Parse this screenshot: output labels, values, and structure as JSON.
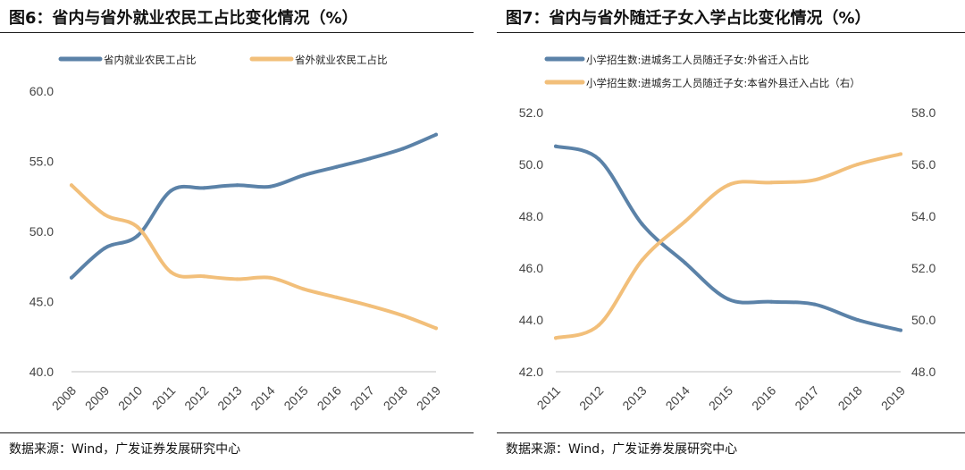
{
  "chart_data": [
    {
      "type": "line",
      "title": "图6：省内与省外就业农民工占比变化情况（%）",
      "source": "数据来源：Wind，广发证券发展研究中心",
      "x": [
        "2008",
        "2009",
        "2010",
        "2011",
        "2012",
        "2013",
        "2014",
        "2015",
        "2016",
        "2017",
        "2018",
        "2019"
      ],
      "ylim": [
        40,
        60
      ],
      "yticks": [
        "40.0",
        "45.0",
        "50.0",
        "55.0",
        "60.0"
      ],
      "legend_position": "top",
      "series": [
        {
          "name": "省内就业农民工占比",
          "color": "#5b82a8",
          "axis": "left",
          "values": [
            46.7,
            48.8,
            49.7,
            52.9,
            53.1,
            53.3,
            53.2,
            54.0,
            54.6,
            55.2,
            55.9,
            56.9
          ]
        },
        {
          "name": "省外就业农民工占比",
          "color": "#f2bf7a",
          "axis": "left",
          "values": [
            53.3,
            51.2,
            50.3,
            47.1,
            46.8,
            46.6,
            46.7,
            45.9,
            45.3,
            44.7,
            44.0,
            43.1
          ]
        }
      ]
    },
    {
      "type": "line",
      "title": "图7：省内与省外随迁子女入学占比变化情况（%）",
      "source": "数据来源：Wind，广发证券发展研究中心",
      "x": [
        "2011",
        "2012",
        "2013",
        "2014",
        "2015",
        "2016",
        "2017",
        "2018",
        "2019"
      ],
      "ylim_left": [
        42,
        52
      ],
      "yticks_left": [
        "42.0",
        "44.0",
        "46.0",
        "48.0",
        "50.0",
        "52.0"
      ],
      "ylim_right": [
        48,
        58
      ],
      "yticks_right": [
        "48.0",
        "50.0",
        "52.0",
        "54.0",
        "56.0",
        "58.0"
      ],
      "legend_position": "top",
      "series": [
        {
          "name": "小学招生数:进城务工人员随迁子女:外省迁入占比",
          "color": "#5b82a8",
          "axis": "left",
          "values": [
            50.7,
            50.2,
            47.7,
            46.2,
            44.8,
            44.7,
            44.6,
            44.0,
            43.6
          ]
        },
        {
          "name": "小学招生数:进城务工人员随迁子女:本省外县迁入占比（右）",
          "color": "#f2bf7a",
          "axis": "right",
          "values": [
            49.3,
            49.8,
            52.3,
            53.8,
            55.2,
            55.3,
            55.4,
            56.0,
            56.4
          ]
        }
      ]
    }
  ]
}
